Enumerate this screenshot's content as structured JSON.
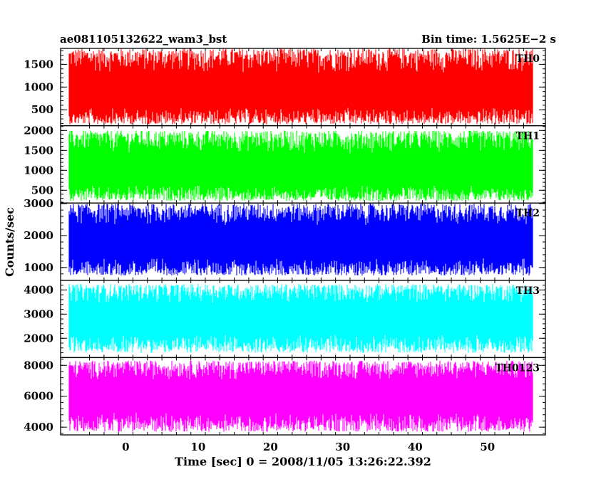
{
  "chart_data": {
    "type": "line",
    "title": "ae081105132622_wam3_bst",
    "subtitle": "Bin time: 1.5625E−2 s",
    "xlabel": "Time [sec] 0 = 2008/11/05 13:26:22.392",
    "ylabel": "Counts/sec",
    "xlim": [
      -9,
      58
    ],
    "x_range_data": [
      -7.8,
      56.2
    ],
    "x_ticks": [
      0,
      10,
      20,
      30,
      40,
      50
    ],
    "x_tick_labels": [
      "0",
      "10",
      "20",
      "30",
      "40",
      "50"
    ],
    "grid": false,
    "panels": [
      {
        "name": "TH0",
        "color": "#ff0000",
        "ylim": [
          150,
          1850
        ],
        "y_ticks": [
          500,
          1000,
          1500
        ],
        "y_tick_labels": [
          "500",
          "1000",
          "1500"
        ],
        "mean": 850,
        "low": 180,
        "high": 1850
      },
      {
        "name": "TH1",
        "color": "#00ff00",
        "ylim": [
          180,
          2120
        ],
        "y_ticks": [
          500,
          1000,
          1500,
          2000
        ],
        "y_tick_labels": [
          "500",
          "1000",
          "1500",
          "2000"
        ],
        "mean": 950,
        "low": 230,
        "high": 2000
      },
      {
        "name": "TH2",
        "color": "#0000ff",
        "ylim": [
          600,
          3020
        ],
        "y_ticks": [
          1000,
          2000,
          3000
        ],
        "y_tick_labels": [
          "1000",
          "2000",
          "3000"
        ],
        "mean": 1750,
        "low": 750,
        "high": 3000
      },
      {
        "name": "TH3",
        "color": "#00ffff",
        "ylim": [
          1200,
          4400
        ],
        "y_ticks": [
          2000,
          3000,
          4000
        ],
        "y_tick_labels": [
          "2000",
          "3000",
          "4000"
        ],
        "mean": 2800,
        "low": 1400,
        "high": 4250
      },
      {
        "name": "TH0123",
        "color": "#ff00ff",
        "ylim": [
          3500,
          8500
        ],
        "y_ticks": [
          4000,
          6000,
          8000
        ],
        "y_tick_labels": [
          "4000",
          "6000",
          "8000"
        ],
        "mean": 6000,
        "low": 3700,
        "high": 8300
      }
    ]
  }
}
